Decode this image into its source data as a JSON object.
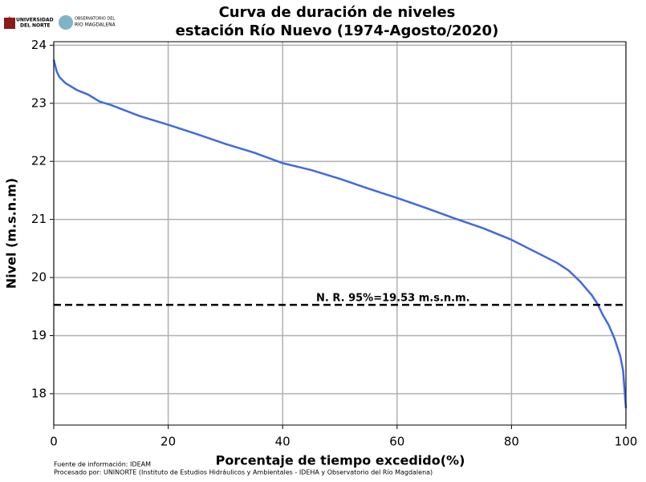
{
  "chart_data": {
    "type": "line",
    "title": "Curva de duración de niveles",
    "subtitle": "estación Río Nuevo (1974-Agosto/2020)",
    "x_label": "Porcentaje de tiempo excedido(%)",
    "y_label": "Nivel (m.s.n.m)",
    "x": [
      0,
      0.5,
      1,
      2,
      4,
      6,
      8,
      10,
      15,
      20,
      25,
      30,
      35,
      40,
      45,
      50,
      55,
      60,
      65,
      70,
      75,
      80,
      85,
      88,
      90,
      92,
      94,
      95,
      96,
      97,
      98,
      99,
      99.5,
      100
    ],
    "series": [
      {
        "name": "Nivel",
        "color": "#4169e1",
        "values": [
          23.75,
          23.55,
          23.45,
          23.35,
          23.23,
          23.15,
          23.03,
          22.97,
          22.78,
          22.63,
          22.47,
          22.3,
          22.15,
          21.97,
          21.85,
          21.7,
          21.53,
          21.37,
          21.2,
          21.02,
          20.85,
          20.65,
          20.4,
          20.25,
          20.12,
          19.93,
          19.7,
          19.55,
          19.35,
          19.18,
          18.95,
          18.65,
          18.4,
          17.75
        ]
      }
    ],
    "reference_line": {
      "value": 19.53,
      "label": "N. R. 95%=19.53 m.s.n.m.",
      "color": "#000000"
    },
    "xlim": [
      0,
      100
    ],
    "xticks": [
      0,
      20,
      40,
      60,
      80,
      100
    ],
    "ylim": [
      17.46,
      24.06
    ],
    "yticks": [
      18,
      19,
      20,
      21,
      22,
      23,
      24
    ],
    "grid": true,
    "logo_texts": [
      "UNIVERSIDAD",
      "DEL NORTE",
      "OBSERVATORIO DEL",
      "RÍO MAGDALENA"
    ],
    "source_notes": [
      "Fuente de información: IDEAM",
      "Procesado por: UNINORTE (Instituto de Estudios Hidráulicos y Ambientales - IDEHA y Observatorio del Río Magdalena)"
    ]
  }
}
